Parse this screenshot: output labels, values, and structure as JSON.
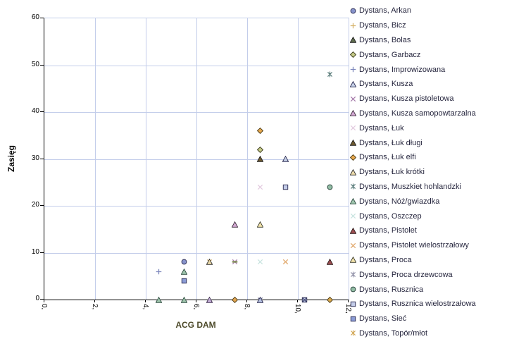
{
  "chart_data": {
    "type": "scatter",
    "title": "",
    "xlabel": "ACG DAM",
    "ylabel": "Zasięg",
    "xlim": [
      0,
      12
    ],
    "ylim": [
      0,
      60
    ],
    "grid": true,
    "legend_position": "right",
    "x_ticks": {
      "values": [
        0,
        2,
        4,
        6,
        8,
        10,
        12
      ],
      "labels": [
        "0,",
        "2,",
        "4,",
        "6,",
        "8,",
        "10,",
        "12,"
      ]
    },
    "y_ticks": {
      "values": [
        0,
        10,
        20,
        30,
        40,
        50,
        60
      ],
      "labels": [
        "0",
        "10",
        "20",
        "30",
        "40",
        "50",
        "60"
      ]
    },
    "colors": {
      "grid": "#c3cdea",
      "axis": "#000000",
      "x_title": "#4d4a2a",
      "y_title": "#000000",
      "legend_text": "#26263e"
    },
    "legend": [
      {
        "label": "Dystans, Arkan",
        "marker": "circle",
        "fill": "#8793cb",
        "stroke": "#26264d"
      },
      {
        "label": "Dystans, Bicz",
        "marker": "plus",
        "fill": "#d6b36b",
        "stroke": "#d6b36b"
      },
      {
        "label": "Dystans, Bolas",
        "marker": "triangle",
        "fill": "#5f6d4e",
        "stroke": "#1a1a1a"
      },
      {
        "label": "Dystans, Garbacz",
        "marker": "diamond",
        "fill": "#c5ca87",
        "stroke": "#3a3a1a"
      },
      {
        "label": "Dystans, Improwizowana",
        "marker": "plus",
        "fill": "#7e88bd",
        "stroke": "#7e88bd"
      },
      {
        "label": "Dystans, Kusza",
        "marker": "triangle",
        "fill": "#c5cfe6",
        "stroke": "#26264d"
      },
      {
        "label": "Dystans, Kusza pistoletowa",
        "marker": "x",
        "fill": "#a77cab",
        "stroke": "#a77cab"
      },
      {
        "label": "Dystans, Kusza samopowtarzalna",
        "marker": "triangle",
        "fill": "#d2a8d2",
        "stroke": "#3a2a3a"
      },
      {
        "label": "Dystans, Łuk",
        "marker": "x",
        "fill": "#e3cbe0",
        "stroke": "#e3cbe0"
      },
      {
        "label": "Dystans, Łuk długi",
        "marker": "triangle",
        "fill": "#6e5a31",
        "stroke": "#1a1a1a"
      },
      {
        "label": "Dystans, Łuk elfi",
        "marker": "diamond",
        "fill": "#e8a84e",
        "stroke": "#4a3a14"
      },
      {
        "label": "Dystans, Łuk krótki",
        "marker": "triangle",
        "fill": "#ead9a9",
        "stroke": "#2a2a2a"
      },
      {
        "label": "Dystans, Muszkiet hohlandzki",
        "marker": "asterisk",
        "fill": "#547876",
        "stroke": "#547876"
      },
      {
        "label": "Dystans, Nóż/gwiazdka",
        "marker": "triangle",
        "fill": "#9dc3ab",
        "stroke": "#2c4a3e"
      },
      {
        "label": "Dystans, Oszczep",
        "marker": "x",
        "fill": "#c9e4e0",
        "stroke": "#c9e4e0"
      },
      {
        "label": "Dystans, Pistolet",
        "marker": "triangle",
        "fill": "#9c4f52",
        "stroke": "#2a1515"
      },
      {
        "label": "Dystans, Pistolet wielostrzałowy",
        "marker": "x",
        "fill": "#e0a567",
        "stroke": "#e0a567"
      },
      {
        "label": "Dystans, Proca",
        "marker": "triangle",
        "fill": "#f2e3ab",
        "stroke": "#3a3a2a"
      },
      {
        "label": "Dystans, Proca drzewcowa",
        "marker": "asterisk",
        "fill": "#8c8ca3",
        "stroke": "#8c8ca3"
      },
      {
        "label": "Dystans, Rusznica",
        "marker": "circle",
        "fill": "#92bda4",
        "stroke": "#1f3a33"
      },
      {
        "label": "Dystans, Rusznica wielostrzałowa",
        "marker": "square",
        "fill": "#c3cce8",
        "stroke": "#26264d"
      },
      {
        "label": "Dystans, Sieć",
        "marker": "square",
        "fill": "#8b9cd6",
        "stroke": "#26264d"
      },
      {
        "label": "Dystans, Topór/młot",
        "marker": "asterisk",
        "fill": "#d2a757",
        "stroke": "#d2a757"
      }
    ],
    "points": [
      {
        "series": "Dystans, Improwizowana",
        "x": 4.5,
        "y": 6,
        "marker": "plus",
        "fill": "#7e88bd",
        "stroke": "#7e88bd"
      },
      {
        "series": "Dystans, Nóż/gwiazdka",
        "x": 4.5,
        "y": 0,
        "marker": "triangle",
        "fill": "#9dc3ab",
        "stroke": "#2c4a3e"
      },
      {
        "series": "Dystans, Arkan",
        "x": 5.5,
        "y": 8,
        "marker": "circle",
        "fill": "#8793cb",
        "stroke": "#26264d"
      },
      {
        "series": "Dystans, Nóż/gwiazdka",
        "x": 5.5,
        "y": 6,
        "marker": "triangle",
        "fill": "#9dc3ab",
        "stroke": "#2c4a3e"
      },
      {
        "series": "Dystans, Sieć",
        "x": 5.5,
        "y": 4,
        "marker": "square",
        "fill": "#8b9cd6",
        "stroke": "#26264d"
      },
      {
        "series": "Dystans, Nóż/gwiazdka",
        "x": 5.5,
        "y": 0,
        "marker": "triangle",
        "fill": "#9dc3ab",
        "stroke": "#2c4a3e"
      },
      {
        "series": "Dystans, Topór/młot",
        "x": 6.5,
        "y": 8,
        "marker": "asterisk",
        "fill": "#d2a757",
        "stroke": "#d2a757"
      },
      {
        "series": "Dystans, Łuk krótki",
        "x": 6.5,
        "y": 8,
        "marker": "triangle",
        "fill": "#ead9a9",
        "stroke": "#2a2a2a"
      },
      {
        "series": "Dystans, Kusza samopowtarzalna",
        "x": 6.5,
        "y": 0,
        "marker": "triangle",
        "fill": "#c6b0da",
        "stroke": "#3a2a4a"
      },
      {
        "series": "Dystans, Kusza samopowtarzalna",
        "x": 7.5,
        "y": 16,
        "marker": "triangle",
        "fill": "#d2a8d2",
        "stroke": "#3a2a3a"
      },
      {
        "series": "Dystans, Kusza pistoletowa",
        "x": 7.5,
        "y": 8,
        "marker": "x",
        "fill": "#a77cab",
        "stroke": "#a77cab"
      },
      {
        "series": "Dystans, Bolas",
        "x": 7.5,
        "y": 8,
        "marker": "dash",
        "fill": "#7d8c52",
        "stroke": "#7d8c52"
      },
      {
        "series": "Dystans, Łuk elfi",
        "x": 7.5,
        "y": 0,
        "marker": "diamond",
        "fill": "#e2a44f",
        "stroke": "#4a3a14"
      },
      {
        "series": "Dystans, Łuk elfi",
        "x": 8.5,
        "y": 36,
        "marker": "diamond",
        "fill": "#e8a84e",
        "stroke": "#4a3a14"
      },
      {
        "series": "Dystans, Garbacz",
        "x": 8.5,
        "y": 32,
        "marker": "diamond",
        "fill": "#c5ca87",
        "stroke": "#3a3a1a"
      },
      {
        "series": "Dystans, Łuk długi",
        "x": 8.5,
        "y": 30,
        "marker": "triangle",
        "fill": "#6e5a31",
        "stroke": "#1a1a1a"
      },
      {
        "series": "Dystans, Łuk",
        "x": 8.5,
        "y": 24,
        "marker": "x",
        "fill": "#e3cbe0",
        "stroke": "#e3cbe0"
      },
      {
        "series": "Dystans, Proca",
        "x": 8.5,
        "y": 16,
        "marker": "triangle",
        "fill": "#f2e3ab",
        "stroke": "#3a3a2a"
      },
      {
        "series": "Dystans, Oszczep",
        "x": 8.5,
        "y": 8,
        "marker": "x",
        "fill": "#c9e4e0",
        "stroke": "#c9e4e0"
      },
      {
        "series": "Dystans, Proca drzewcowa",
        "x": 8.5,
        "y": 0,
        "marker": "asterisk",
        "fill": "#565a80",
        "stroke": "#565a80"
      },
      {
        "series": "Dystans, Kusza",
        "x": 8.5,
        "y": 0,
        "marker": "triangle",
        "fill": "#b7c2e2",
        "stroke": "#26264d"
      },
      {
        "series": "Dystans, Kusza",
        "x": 9.5,
        "y": 30,
        "marker": "triangle",
        "fill": "#c5cfe6",
        "stroke": "#26264d"
      },
      {
        "series": "Dystans, Rusznica wielostrzałowa",
        "x": 9.5,
        "y": 24,
        "marker": "square",
        "fill": "#c3cce8",
        "stroke": "#26264d"
      },
      {
        "series": "Dystans, Pistolet wielostrzałowy",
        "x": 9.5,
        "y": 8,
        "marker": "x",
        "fill": "#e0a567",
        "stroke": "#e0a567"
      },
      {
        "series": "Dystans, Rusznica wielostrzałowa",
        "x": 10.25,
        "y": 0,
        "marker": "square-x",
        "fill": "#b9c4e6",
        "stroke": "#26264d"
      },
      {
        "series": "Dystans, Muszkiet hohlandzki",
        "x": 11.25,
        "y": 48,
        "marker": "asterisk",
        "fill": "#547876",
        "stroke": "#547876"
      },
      {
        "series": "Dystans, Rusznica",
        "x": 11.25,
        "y": 24,
        "marker": "circle",
        "fill": "#92bda4",
        "stroke": "#1f3a33"
      },
      {
        "series": "Dystans, Pistolet",
        "x": 11.25,
        "y": 8,
        "marker": "triangle",
        "fill": "#9c4f52",
        "stroke": "#2a1515"
      },
      {
        "series": "Dystans, Łuk elfi",
        "x": 11.25,
        "y": 0,
        "marker": "diamond",
        "fill": "#d9a84e",
        "stroke": "#4a3a14"
      }
    ]
  }
}
